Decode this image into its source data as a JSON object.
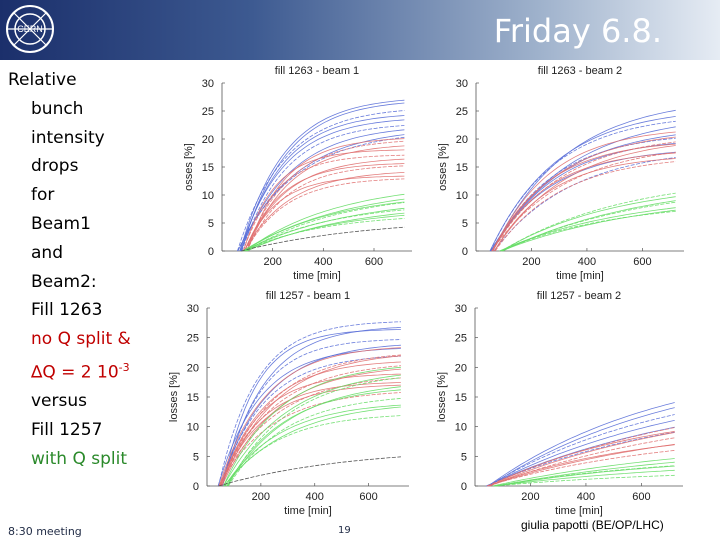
{
  "header": {
    "title": "Friday 6.8.",
    "logo_text": "CERN"
  },
  "left_text": {
    "lines": [
      {
        "text": "Relative",
        "color": "black",
        "indent": false
      },
      {
        "text": "bunch",
        "color": "black",
        "indent": true
      },
      {
        "text": "intensity",
        "color": "black",
        "indent": true
      },
      {
        "text": "drops",
        "color": "black",
        "indent": true
      },
      {
        "text": "for",
        "color": "black",
        "indent": true
      },
      {
        "text": "Beam1",
        "color": "black",
        "indent": true
      },
      {
        "text": "and",
        "color": "black",
        "indent": true
      },
      {
        "text": "Beam2:",
        "color": "black",
        "indent": true
      },
      {
        "text": "Fill 1263",
        "color": "black",
        "indent": true
      },
      {
        "text": "no Q split &",
        "color": "red",
        "indent": true
      },
      {
        "text": "∆Q = 2 10",
        "sup": "-3",
        "color": "red",
        "indent": true
      },
      {
        "text": "versus",
        "color": "black",
        "indent": true
      },
      {
        "text": "Fill 1257",
        "color": "black",
        "indent": true
      },
      {
        "text": "with Q split",
        "color": "green",
        "indent": true
      }
    ]
  },
  "footer": {
    "left": "8:30 meeting",
    "page": "19",
    "author": "giulia papotti (BE/OP/LHC)"
  },
  "colors": {
    "blue": "#5a6fd8",
    "red": "#e07070",
    "green": "#66dd66",
    "dark": "#444444",
    "header_dark": "#1b2f6b"
  },
  "chart_data": [
    {
      "type": "line",
      "title": "fill 1263 - beam 1",
      "xlabel": "time [min]",
      "ylabel": "osses [%]",
      "xlim": [
        0,
        750
      ],
      "ylim": [
        0,
        30
      ],
      "xticks": [
        200,
        400,
        600
      ],
      "yticks": [
        0,
        5,
        10,
        15,
        20,
        25,
        30
      ],
      "series": [
        {
          "name": "blue bunches",
          "color": "blue",
          "count": 9,
          "t_start": 60,
          "t_end": 720,
          "lo": 20,
          "hi": 27,
          "tau": 200
        },
        {
          "name": "red bunches",
          "color": "red",
          "count": 11,
          "t_start": 80,
          "t_end": 720,
          "lo": 13,
          "hi": 20,
          "tau": 150
        },
        {
          "name": "green bunches",
          "color": "green",
          "count": 9,
          "t_start": 80,
          "t_end": 720,
          "lo": 6,
          "hi": 10,
          "tau": 350
        },
        {
          "name": "dark bunches",
          "color": "dark",
          "count": 1,
          "t_start": 60,
          "t_end": 720,
          "lo": 4,
          "hi": 4,
          "tau": 600
        }
      ]
    },
    {
      "type": "line",
      "title": "fill 1263 - beam 2",
      "xlabel": "time [min]",
      "ylabel": "osses [%]",
      "xlim": [
        0,
        750
      ],
      "ylim": [
        0,
        30
      ],
      "xticks": [
        200,
        400,
        600
      ],
      "yticks": [
        0,
        5,
        10,
        15,
        20,
        25,
        30
      ],
      "series": [
        {
          "name": "blue bunches",
          "color": "blue",
          "count": 9,
          "t_start": 50,
          "t_end": 720,
          "lo": 17,
          "hi": 25,
          "tau": 250
        },
        {
          "name": "red bunches",
          "color": "red",
          "count": 9,
          "t_start": 50,
          "t_end": 720,
          "lo": 16,
          "hi": 21,
          "tau": 250
        },
        {
          "name": "green bunches",
          "color": "green",
          "count": 7,
          "t_start": 80,
          "t_end": 720,
          "lo": 7,
          "hi": 10,
          "tau": 500
        }
      ]
    },
    {
      "type": "line",
      "title": "fill 1257 - beam 1",
      "xlabel": "time [min]",
      "ylabel": "losses [%]",
      "xlim": [
        0,
        750
      ],
      "ylim": [
        0,
        30
      ],
      "xticks": [
        200,
        400,
        600
      ],
      "yticks": [
        0,
        5,
        10,
        15,
        20,
        25,
        30
      ],
      "series": [
        {
          "name": "blue bunches",
          "color": "blue",
          "count": 7,
          "t_start": 40,
          "t_end": 720,
          "lo": 22,
          "hi": 28,
          "tau": 150
        },
        {
          "name": "red bunches",
          "color": "red",
          "count": 11,
          "t_start": 40,
          "t_end": 720,
          "lo": 16,
          "hi": 23,
          "tau": 180
        },
        {
          "name": "green bunches",
          "color": "green",
          "count": 9,
          "t_start": 60,
          "t_end": 720,
          "lo": 12,
          "hi": 20,
          "tau": 220
        },
        {
          "name": "dark bunches",
          "color": "dark",
          "count": 1,
          "t_start": 40,
          "t_end": 720,
          "lo": 5,
          "hi": 5,
          "tau": 600
        }
      ]
    },
    {
      "type": "line",
      "title": "fill 1257 - beam 2",
      "xlabel": "time [min]",
      "ylabel": "losses [%]",
      "xlim": [
        0,
        750
      ],
      "ylim": [
        0,
        30
      ],
      "xticks": [
        200,
        400,
        600
      ],
      "yticks": [
        0,
        5,
        10,
        15,
        20,
        25,
        30
      ],
      "series": [
        {
          "name": "blue bunches",
          "color": "blue",
          "count": 6,
          "t_start": 40,
          "t_end": 720,
          "lo": 9,
          "hi": 14,
          "tau": 700
        },
        {
          "name": "red bunches",
          "color": "red",
          "count": 7,
          "t_start": 40,
          "t_end": 720,
          "lo": 6,
          "hi": 10,
          "tau": 700
        },
        {
          "name": "green bunches",
          "color": "green",
          "count": 6,
          "t_start": 60,
          "t_end": 720,
          "lo": 2,
          "hi": 5,
          "tau": 800
        }
      ]
    }
  ]
}
